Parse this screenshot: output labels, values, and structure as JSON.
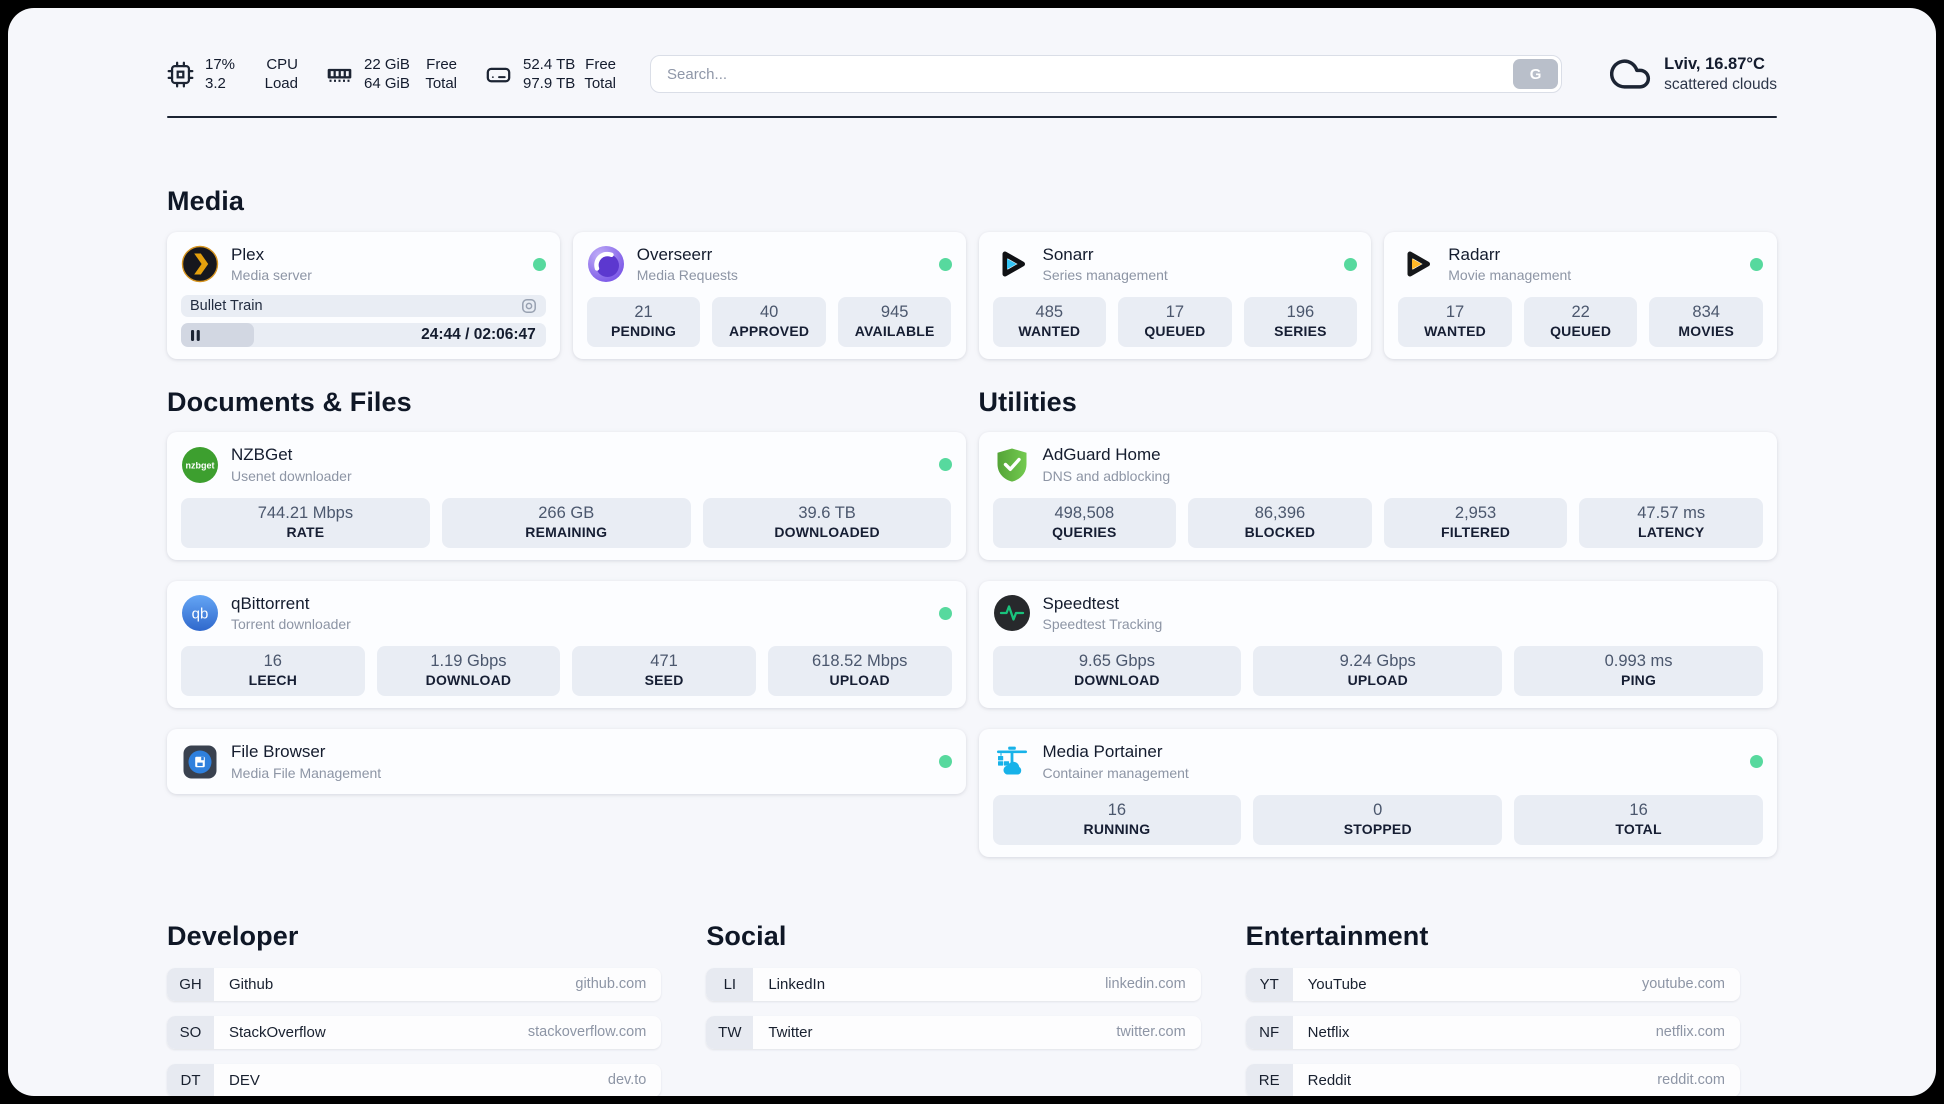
{
  "colors": {
    "status_online": "#57d99e",
    "progress_fill": "#3d475c",
    "accent_dark": "#1c2433",
    "plex_amber": "#e5a00d",
    "overseerr_purple": "#7c5ce8",
    "sonarr_cyan": "#33c4f5",
    "radarr_amber": "#ffb827",
    "nzbget_green": "#3d9f2f",
    "qbittorrent_blue": "#3570d4",
    "adguard_green": "#67b546",
    "speedtest_green": "#19c37d",
    "portainer_blue": "#17b2e9"
  },
  "header": {
    "widgets": {
      "cpu": {
        "value_top": "17%",
        "value_bottom": "3.2",
        "label_top": "CPU",
        "label_bottom": "Load",
        "progress_pct": 17
      },
      "memory": {
        "value_top": "22 GiB",
        "value_bottom": "64 GiB",
        "label_top": "Free",
        "label_bottom": "Total",
        "progress_pct": 66
      },
      "disk": {
        "value_top": "52.4 TB",
        "value_bottom": "97.9 TB",
        "label_top": "Free",
        "label_bottom": "Total",
        "progress_pct": 46
      }
    },
    "search": {
      "placeholder": "Search...",
      "button_label": "G"
    },
    "weather": {
      "location_temp": "Lviv, 16.87°C",
      "condition": "scattered clouds"
    }
  },
  "icons": {
    "nzbget_label": "nzbget",
    "qbittorrent_label": "qb"
  },
  "sections": {
    "media": {
      "title": "Media",
      "services": [
        {
          "name": "Plex",
          "description": "Media server",
          "online": true,
          "now_playing": {
            "title": "Bullet Train",
            "time": "24:44 / 02:06:47",
            "progress_pct": 20
          }
        },
        {
          "name": "Overseerr",
          "description": "Media Requests",
          "online": true,
          "stats": [
            {
              "value": "21",
              "label": "PENDING"
            },
            {
              "value": "40",
              "label": "APPROVED"
            },
            {
              "value": "945",
              "label": "AVAILABLE"
            }
          ]
        },
        {
          "name": "Sonarr",
          "description": "Series management",
          "online": true,
          "stats": [
            {
              "value": "485",
              "label": "WANTED"
            },
            {
              "value": "17",
              "label": "QUEUED"
            },
            {
              "value": "196",
              "label": "SERIES"
            }
          ]
        },
        {
          "name": "Radarr",
          "description": "Movie management",
          "online": true,
          "stats": [
            {
              "value": "17",
              "label": "WANTED"
            },
            {
              "value": "22",
              "label": "QUEUED"
            },
            {
              "value": "834",
              "label": "MOVIES"
            }
          ]
        }
      ]
    },
    "documents": {
      "title": "Documents & Files",
      "services": [
        {
          "name": "NZBGet",
          "description": "Usenet downloader",
          "online": true,
          "stats": [
            {
              "value": "744.21 Mbps",
              "label": "RATE"
            },
            {
              "value": "266 GB",
              "label": "REMAINING"
            },
            {
              "value": "39.6 TB",
              "label": "DOWNLOADED"
            }
          ]
        },
        {
          "name": "qBittorrent",
          "description": "Torrent downloader",
          "online": true,
          "stats": [
            {
              "value": "16",
              "label": "LEECH"
            },
            {
              "value": "1.19 Gbps",
              "label": "DOWNLOAD"
            },
            {
              "value": "471",
              "label": "SEED"
            },
            {
              "value": "618.52 Mbps",
              "label": "UPLOAD"
            }
          ]
        },
        {
          "name": "File Browser",
          "description": "Media File Management",
          "online": true
        }
      ]
    },
    "utilities": {
      "title": "Utilities",
      "services": [
        {
          "name": "AdGuard Home",
          "description": "DNS and adblocking",
          "online": false,
          "stats": [
            {
              "value": "498,508",
              "label": "QUERIES"
            },
            {
              "value": "86,396",
              "label": "BLOCKED"
            },
            {
              "value": "2,953",
              "label": "FILTERED"
            },
            {
              "value": "47.57 ms",
              "label": "LATENCY"
            }
          ]
        },
        {
          "name": "Speedtest",
          "description": "Speedtest Tracking",
          "online": false,
          "stats": [
            {
              "value": "9.65 Gbps",
              "label": "DOWNLOAD"
            },
            {
              "value": "9.24 Gbps",
              "label": "UPLOAD"
            },
            {
              "value": "0.993 ms",
              "label": "PING"
            }
          ]
        },
        {
          "name": "Media Portainer",
          "description": "Container management",
          "online": true,
          "stats": [
            {
              "value": "16",
              "label": "RUNNING"
            },
            {
              "value": "0",
              "label": "STOPPED"
            },
            {
              "value": "16",
              "label": "TOTAL"
            }
          ]
        }
      ]
    },
    "bookmarks": [
      {
        "title": "Developer",
        "links": [
          {
            "abbr": "GH",
            "name": "Github",
            "domain": "github.com"
          },
          {
            "abbr": "SO",
            "name": "StackOverflow",
            "domain": "stackoverflow.com"
          },
          {
            "abbr": "DT",
            "name": "DEV",
            "domain": "dev.to"
          }
        ]
      },
      {
        "title": "Social",
        "links": [
          {
            "abbr": "LI",
            "name": "LinkedIn",
            "domain": "linkedin.com"
          },
          {
            "abbr": "TW",
            "name": "Twitter",
            "domain": "twitter.com"
          }
        ]
      },
      {
        "title": "Entertainment",
        "links": [
          {
            "abbr": "YT",
            "name": "YouTube",
            "domain": "youtube.com"
          },
          {
            "abbr": "NF",
            "name": "Netflix",
            "domain": "netflix.com"
          },
          {
            "abbr": "RE",
            "name": "Reddit",
            "domain": "reddit.com"
          }
        ]
      }
    ]
  }
}
